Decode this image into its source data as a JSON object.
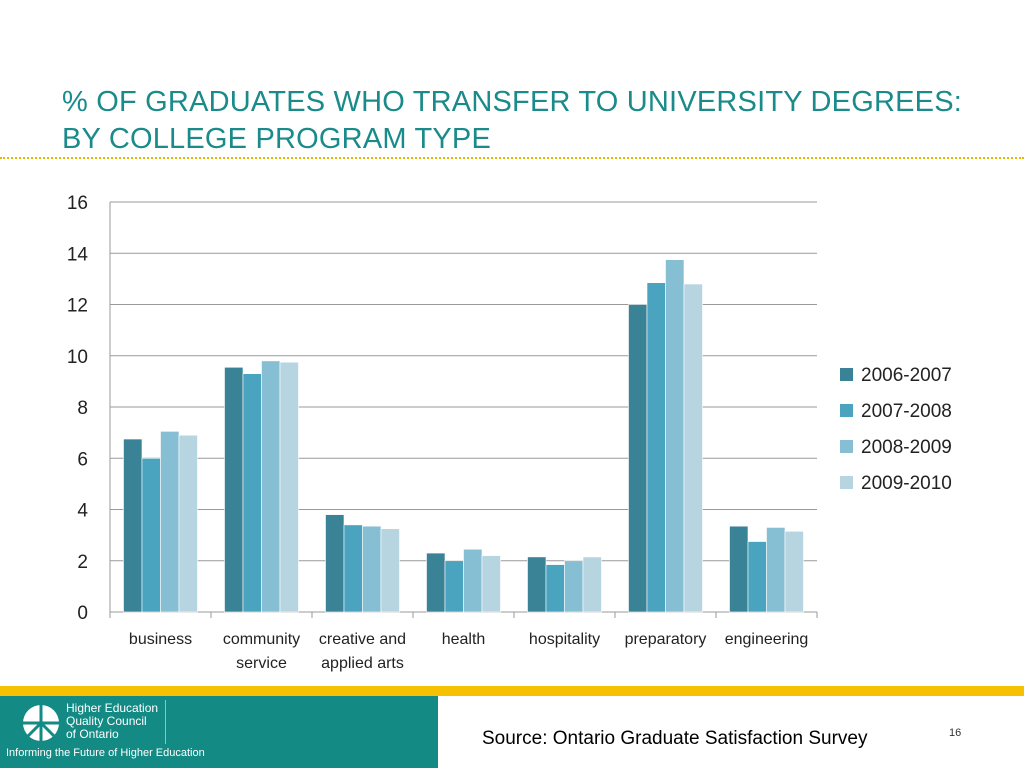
{
  "slide": {
    "title_line1": "% OF GRADUATES WHO TRANSFER TO UNIVERSITY DEGREES:",
    "title_line2": "BY COLLEGE PROGRAM TYPE",
    "source": "Source: Ontario Graduate Satisfaction Survey",
    "page_number": "16"
  },
  "footer": {
    "logo_line1": "Higher Education",
    "logo_line2": "Quality Council",
    "logo_line3": "of Ontario",
    "tagline": "Informing the Future of Higher Education",
    "logo_icon": "heqco-logo-icon"
  },
  "colors": {
    "title": "#1a8a8a",
    "rule": "#e6b800",
    "footer_band": "#f5c100",
    "footer_panel": "#138a84"
  },
  "chart_data": {
    "type": "bar",
    "categories": [
      [
        "business"
      ],
      [
        "community",
        "service"
      ],
      [
        "creative and",
        "applied arts"
      ],
      [
        "health"
      ],
      [
        "hospitality"
      ],
      [
        "preparatory"
      ],
      [
        "engineering"
      ]
    ],
    "series": [
      {
        "name": "2006-2007",
        "color": "#3a8296",
        "values": [
          6.75,
          9.55,
          3.8,
          2.3,
          2.15,
          12.0,
          3.35
        ]
      },
      {
        "name": "2007-2008",
        "color": "#4aa3bf",
        "values": [
          6.0,
          9.3,
          3.4,
          2.0,
          1.85,
          12.85,
          2.75
        ]
      },
      {
        "name": "2008-2009",
        "color": "#86bfd3",
        "values": [
          7.05,
          9.8,
          3.35,
          2.45,
          2.0,
          13.75,
          3.3
        ]
      },
      {
        "name": "2009-2010",
        "color": "#b7d5e1",
        "values": [
          6.9,
          9.75,
          3.25,
          2.2,
          2.15,
          12.8,
          3.15
        ]
      }
    ],
    "ylim": [
      0,
      16
    ],
    "yticks": [
      0,
      2,
      4,
      6,
      8,
      10,
      12,
      14,
      16
    ],
    "grid": true,
    "legend": "right"
  }
}
